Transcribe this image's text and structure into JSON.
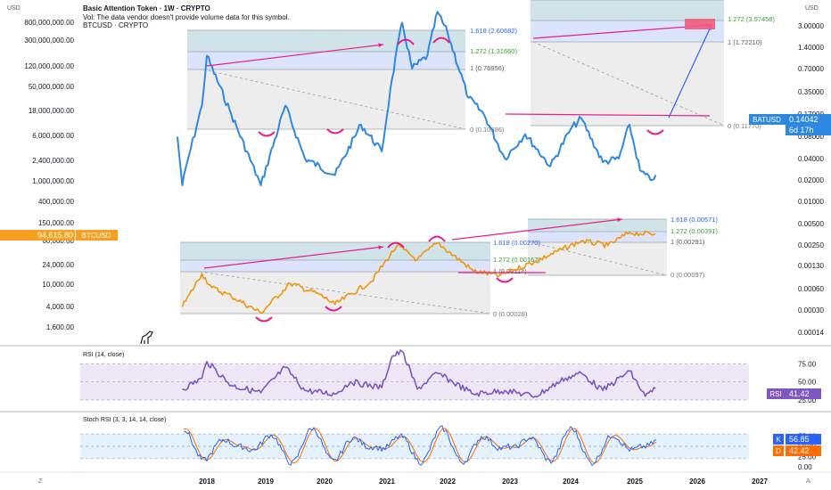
{
  "header": {
    "title": "Basic Attention Token · 1W · CRYPTO",
    "volume_note": "Vol: The data vendor doesn't provide volume data for this symbol.",
    "overlay_symbol": "BTCUSD · CRYPTO",
    "left_unit": "USD",
    "right_unit": "USD"
  },
  "footer": {
    "left_marker": "Z",
    "right_marker": "A"
  },
  "colors": {
    "bat_line": "#2e88e0",
    "btc_line": "#f2960c",
    "rsi_line": "#7e57c2",
    "stoch_k": "#2962ff",
    "stoch_d": "#ff6d00",
    "annotation": "#e91e8c",
    "fib_teal": "#cfe3e8",
    "fib_blue": "#dbe4fb",
    "fib_grey": "#ededed"
  },
  "chart_data": [
    {
      "type": "line",
      "title": "Basic Attention Token · 1W · CRYPTO",
      "series": [
        {
          "name": "BATUSD",
          "last_value": 0.14042,
          "countdown": "6d 17h",
          "x": [
            "2017-07",
            "2017-08",
            "2017-09",
            "2017-12",
            "2018-01",
            "2018-06",
            "2018-12",
            "2019-05",
            "2019-09",
            "2020-03",
            "2020-08",
            "2020-12",
            "2021-02",
            "2021-04",
            "2021-06",
            "2021-09",
            "2021-11",
            "2022-01",
            "2022-05",
            "2022-08",
            "2022-12",
            "2023-04",
            "2023-09",
            "2024-01",
            "2024-03",
            "2024-07",
            "2024-10",
            "2024-12",
            "2025-02",
            "2025-04",
            "2025-05"
          ],
          "y": [
            0.25,
            0.12,
            0.17,
            0.4,
            0.85,
            0.35,
            0.12,
            0.4,
            0.18,
            0.14,
            0.3,
            0.2,
            0.6,
            1.4,
            0.7,
            0.85,
            1.65,
            1.2,
            0.45,
            0.35,
            0.18,
            0.26,
            0.16,
            0.28,
            0.33,
            0.17,
            0.18,
            0.3,
            0.15,
            0.13,
            0.14
          ]
        }
      ],
      "fib_zone_1": {
        "levels": [
          "1.618 (2.60682)",
          "1.272 (1.31660)",
          "1 (0.76956)",
          "0 (0.10686)"
        ]
      },
      "fib_zone_2": {
        "levels": [
          "1.272 (3.57458)",
          "1 (1.72210)",
          "0 (0.11770)"
        ]
      },
      "right_axis_ticks": [
        "3.00000",
        "1.40000",
        "0.70000",
        "0.35000",
        "0.17000",
        "0.08000",
        "0.04000",
        "0.02000",
        "0.01000",
        "0.00500",
        "0.00250",
        "0.00130",
        "0.00060",
        "0.00030",
        "0.00014"
      ],
      "yscale": "log"
    },
    {
      "type": "line",
      "title": "BTCUSD · CRYPTO",
      "series": [
        {
          "name": "BTCUSD",
          "last_value": 94615.8,
          "x": [
            "2017-08",
            "2017-12",
            "2018-02",
            "2018-06",
            "2018-12",
            "2019-06",
            "2019-12",
            "2020-03",
            "2020-10",
            "2021-03",
            "2021-07",
            "2021-11",
            "2022-06",
            "2022-11",
            "2023-06",
            "2024-03",
            "2024-08",
            "2024-12",
            "2025-02",
            "2025-05"
          ],
          "y": [
            4500,
            18000,
            10000,
            7000,
            3500,
            12000,
            7500,
            5000,
            13000,
            58000,
            32000,
            65000,
            20000,
            16500,
            30000,
            70000,
            58000,
            100000,
            95000,
            94600
          ]
        }
      ],
      "fib_zone_3": {
        "levels": [
          "1.618 (0.00270)",
          "1.272 (0.00167)",
          "1 (0.00114)",
          "0 (0.00028)"
        ]
      },
      "fib_zone_4": {
        "levels": [
          "1.618 (0.00571)",
          "1.272 (0.00391)",
          "1 (0.00291)",
          "0 (0.00097)"
        ]
      },
      "left_axis_ticks": [
        "800,000,000.00",
        "300,000,000.00",
        "120,000,000.00",
        "50,000,000.00",
        "18,000,000.00",
        "6,000,000.00",
        "2,400,000.00",
        "1,000,000.00",
        "400,000.00",
        "150,000.00",
        "60,000.00",
        "24,000.00",
        "10,000.00",
        "4,000.00",
        "1,600.00"
      ],
      "yscale": "log"
    },
    {
      "type": "line",
      "title": "RSI (14, close)",
      "series": [
        {
          "name": "RSI",
          "last_value": 41.42,
          "x": [
            "2017-08",
            "2017-12",
            "2018-01",
            "2018-06",
            "2018-12",
            "2019-05",
            "2019-09",
            "2020-03",
            "2020-06",
            "2020-12",
            "2021-02",
            "2021-04",
            "2021-07",
            "2021-11",
            "2022-06",
            "2022-12",
            "2023-06",
            "2023-12",
            "2024-03",
            "2024-07",
            "2024-12",
            "2025-03",
            "2025-05"
          ],
          "y": [
            40,
            55,
            78,
            45,
            35,
            70,
            38,
            33,
            50,
            42,
            85,
            92,
            40,
            62,
            33,
            38,
            30,
            55,
            62,
            38,
            65,
            30,
            41
          ]
        }
      ],
      "y_ticks": [
        "75.00",
        "50.00",
        "25.00"
      ],
      "ylim": [
        15,
        95
      ]
    },
    {
      "type": "line",
      "title": "Stoch RSI (3, 3, 14, 14, close)",
      "series": [
        {
          "name": "K",
          "last_value": 56.85
        },
        {
          "name": "D",
          "last_value": 42.42
        }
      ],
      "y_ticks": [
        "75.00",
        "50.00",
        "25.00",
        "0.00"
      ],
      "ylim": [
        0,
        100
      ]
    }
  ],
  "x_axis_ticks": [
    "2018",
    "2019",
    "2020",
    "2021",
    "2022",
    "2023",
    "2024",
    "2025",
    "2026",
    "2027"
  ]
}
